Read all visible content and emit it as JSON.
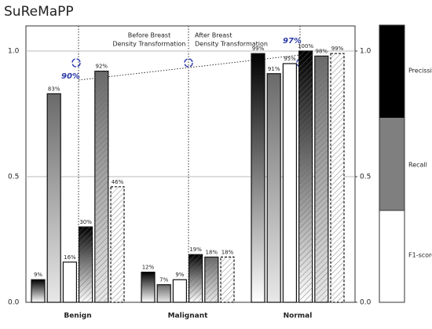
{
  "chart_data": {
    "type": "bar",
    "title": "SuReMaPP",
    "categories": [
      "Benign",
      "Malignant",
      "Normal"
    ],
    "series": [
      {
        "name": "Precission",
        "color": "#000000",
        "values": [
          0.09,
          0.12,
          0.99
        ],
        "value_labels": [
          "9%",
          "12%",
          "99%"
        ]
      },
      {
        "name": "Recall",
        "color": "#7f7f7f",
        "values": [
          0.83,
          0.07,
          0.91
        ],
        "value_labels": [
          "83%",
          "7%",
          "91%"
        ]
      },
      {
        "name": "F1-score",
        "color": "#ffffff",
        "values": [
          0.16,
          0.09,
          0.95
        ],
        "value_labels": [
          "16%",
          "9%",
          "95%"
        ]
      },
      {
        "name": "Precission",
        "color": "#000000",
        "hatch": true,
        "values": [
          0.3,
          0.19,
          1.0
        ],
        "value_labels": [
          "30%",
          "19%",
          "100%"
        ]
      },
      {
        "name": "Recall",
        "color": "#7f7f7f",
        "hatch": true,
        "values": [
          0.92,
          0.18,
          0.98
        ],
        "value_labels": [
          "92%",
          "18%",
          "98%"
        ]
      },
      {
        "name": "F1-score",
        "color": "#ffffff",
        "hatch": true,
        "values": [
          0.46,
          0.18,
          0.99
        ],
        "value_labels": [
          "46%",
          "18%",
          "99%"
        ]
      }
    ],
    "annotations": {
      "before": [
        "Before Breast",
        "Density Transformation"
      ],
      "after": [
        "After Breast",
        "Density Transformation"
      ],
      "start": "90%",
      "end": "97%"
    },
    "ylim": [
      0,
      1.1
    ],
    "yticks": [
      {
        "value": 0,
        "label": "0.0"
      },
      0.5,
      {
        "value": 1.0,
        "label": "1.0"
      }
    ],
    "y2lim": [
      0,
      1.1
    ],
    "y2ticks": [
      {
        "value": 0,
        "label": "0.0"
      },
      0.5,
      {
        "value": 1.0,
        "label": "1.0"
      }
    ],
    "grid": true
  }
}
